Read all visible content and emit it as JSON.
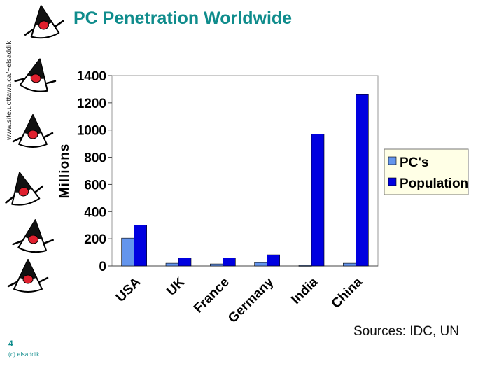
{
  "slide": {
    "title": "PC Penetration Worldwide",
    "side_url": "www.site.uottawa.ca/~elsaddik",
    "page_number": "4",
    "credit": "(c) elsaddik",
    "source": "Sources: IDC, UN"
  },
  "colors": {
    "title": "#0f8c8c",
    "pcs": "#6495ED",
    "population": "#0000E0",
    "legend_bg": "#FFFFE6"
  },
  "icons": [
    "duke-mascot-icon",
    "duke-mascot-icon",
    "duke-mascot-icon",
    "duke-mascot-icon",
    "duke-mascot-icon",
    "duke-mascot-icon"
  ],
  "chart_data": {
    "type": "bar",
    "title": "",
    "xlabel": "",
    "ylabel": "Millions",
    "ylim": [
      0,
      1400
    ],
    "yticks": [
      0,
      200,
      400,
      600,
      800,
      1000,
      1200,
      1400
    ],
    "grid": false,
    "legend_position": "right",
    "categories": [
      "USA",
      "UK",
      "France",
      "Germany",
      "India",
      "China"
    ],
    "series": [
      {
        "name": "PC's",
        "values": [
          205,
          20,
          15,
          25,
          3,
          20
        ]
      },
      {
        "name": "Population",
        "values": [
          300,
          60,
          60,
          82,
          970,
          1260
        ]
      }
    ]
  }
}
